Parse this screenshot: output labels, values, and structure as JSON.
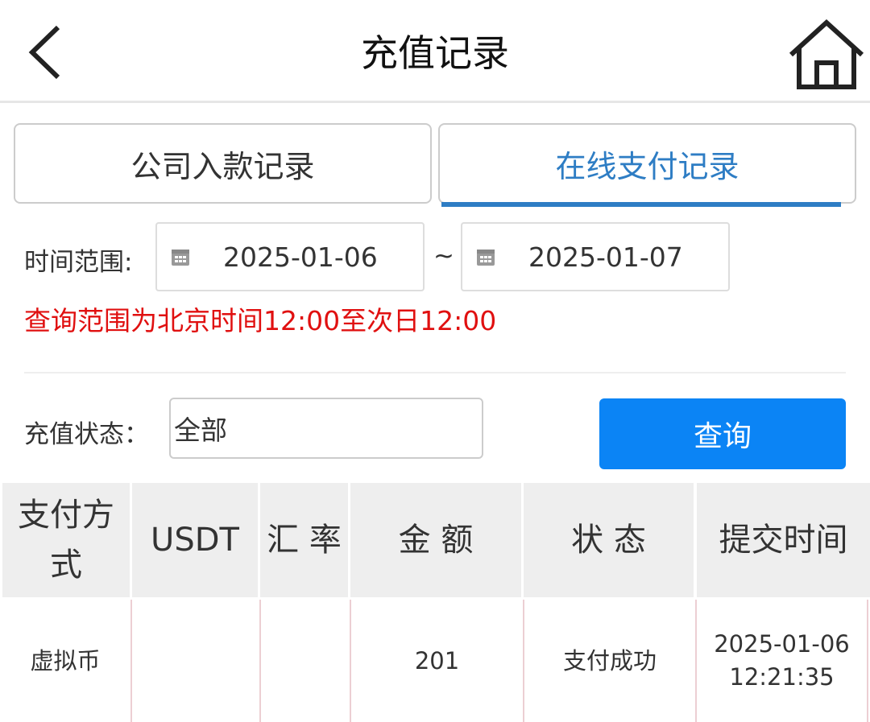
{
  "header": {
    "title": "充值记录",
    "back_icon": "chevron-left-icon",
    "home_icon": "home-icon"
  },
  "tabs": [
    {
      "label": "公司入款记录",
      "active": false
    },
    {
      "label": "在线支付记录",
      "active": true
    }
  ],
  "filters": {
    "time_range_label": "时间范围:",
    "start_date": "2025-01-06",
    "separator": "~",
    "end_date": "2025-01-07",
    "note": "查询范围为北京时间12:00至次日12:00",
    "status_label": "充值状态：",
    "status_value": "全部",
    "query_button": "查询"
  },
  "colors": {
    "accent": "#2e7dc4",
    "button": "#0b84f5",
    "note": "#e01010"
  },
  "table": {
    "headers": [
      "支付方式",
      "USDT",
      "汇 率",
      "金 额",
      "状 态",
      "提交时间"
    ],
    "rows": [
      {
        "method": "虚拟币",
        "usdt": "",
        "rate": "",
        "amount": "201",
        "status": "支付成功",
        "time_date": "2025-01-06",
        "time_clock": "12:21:35"
      }
    ]
  }
}
